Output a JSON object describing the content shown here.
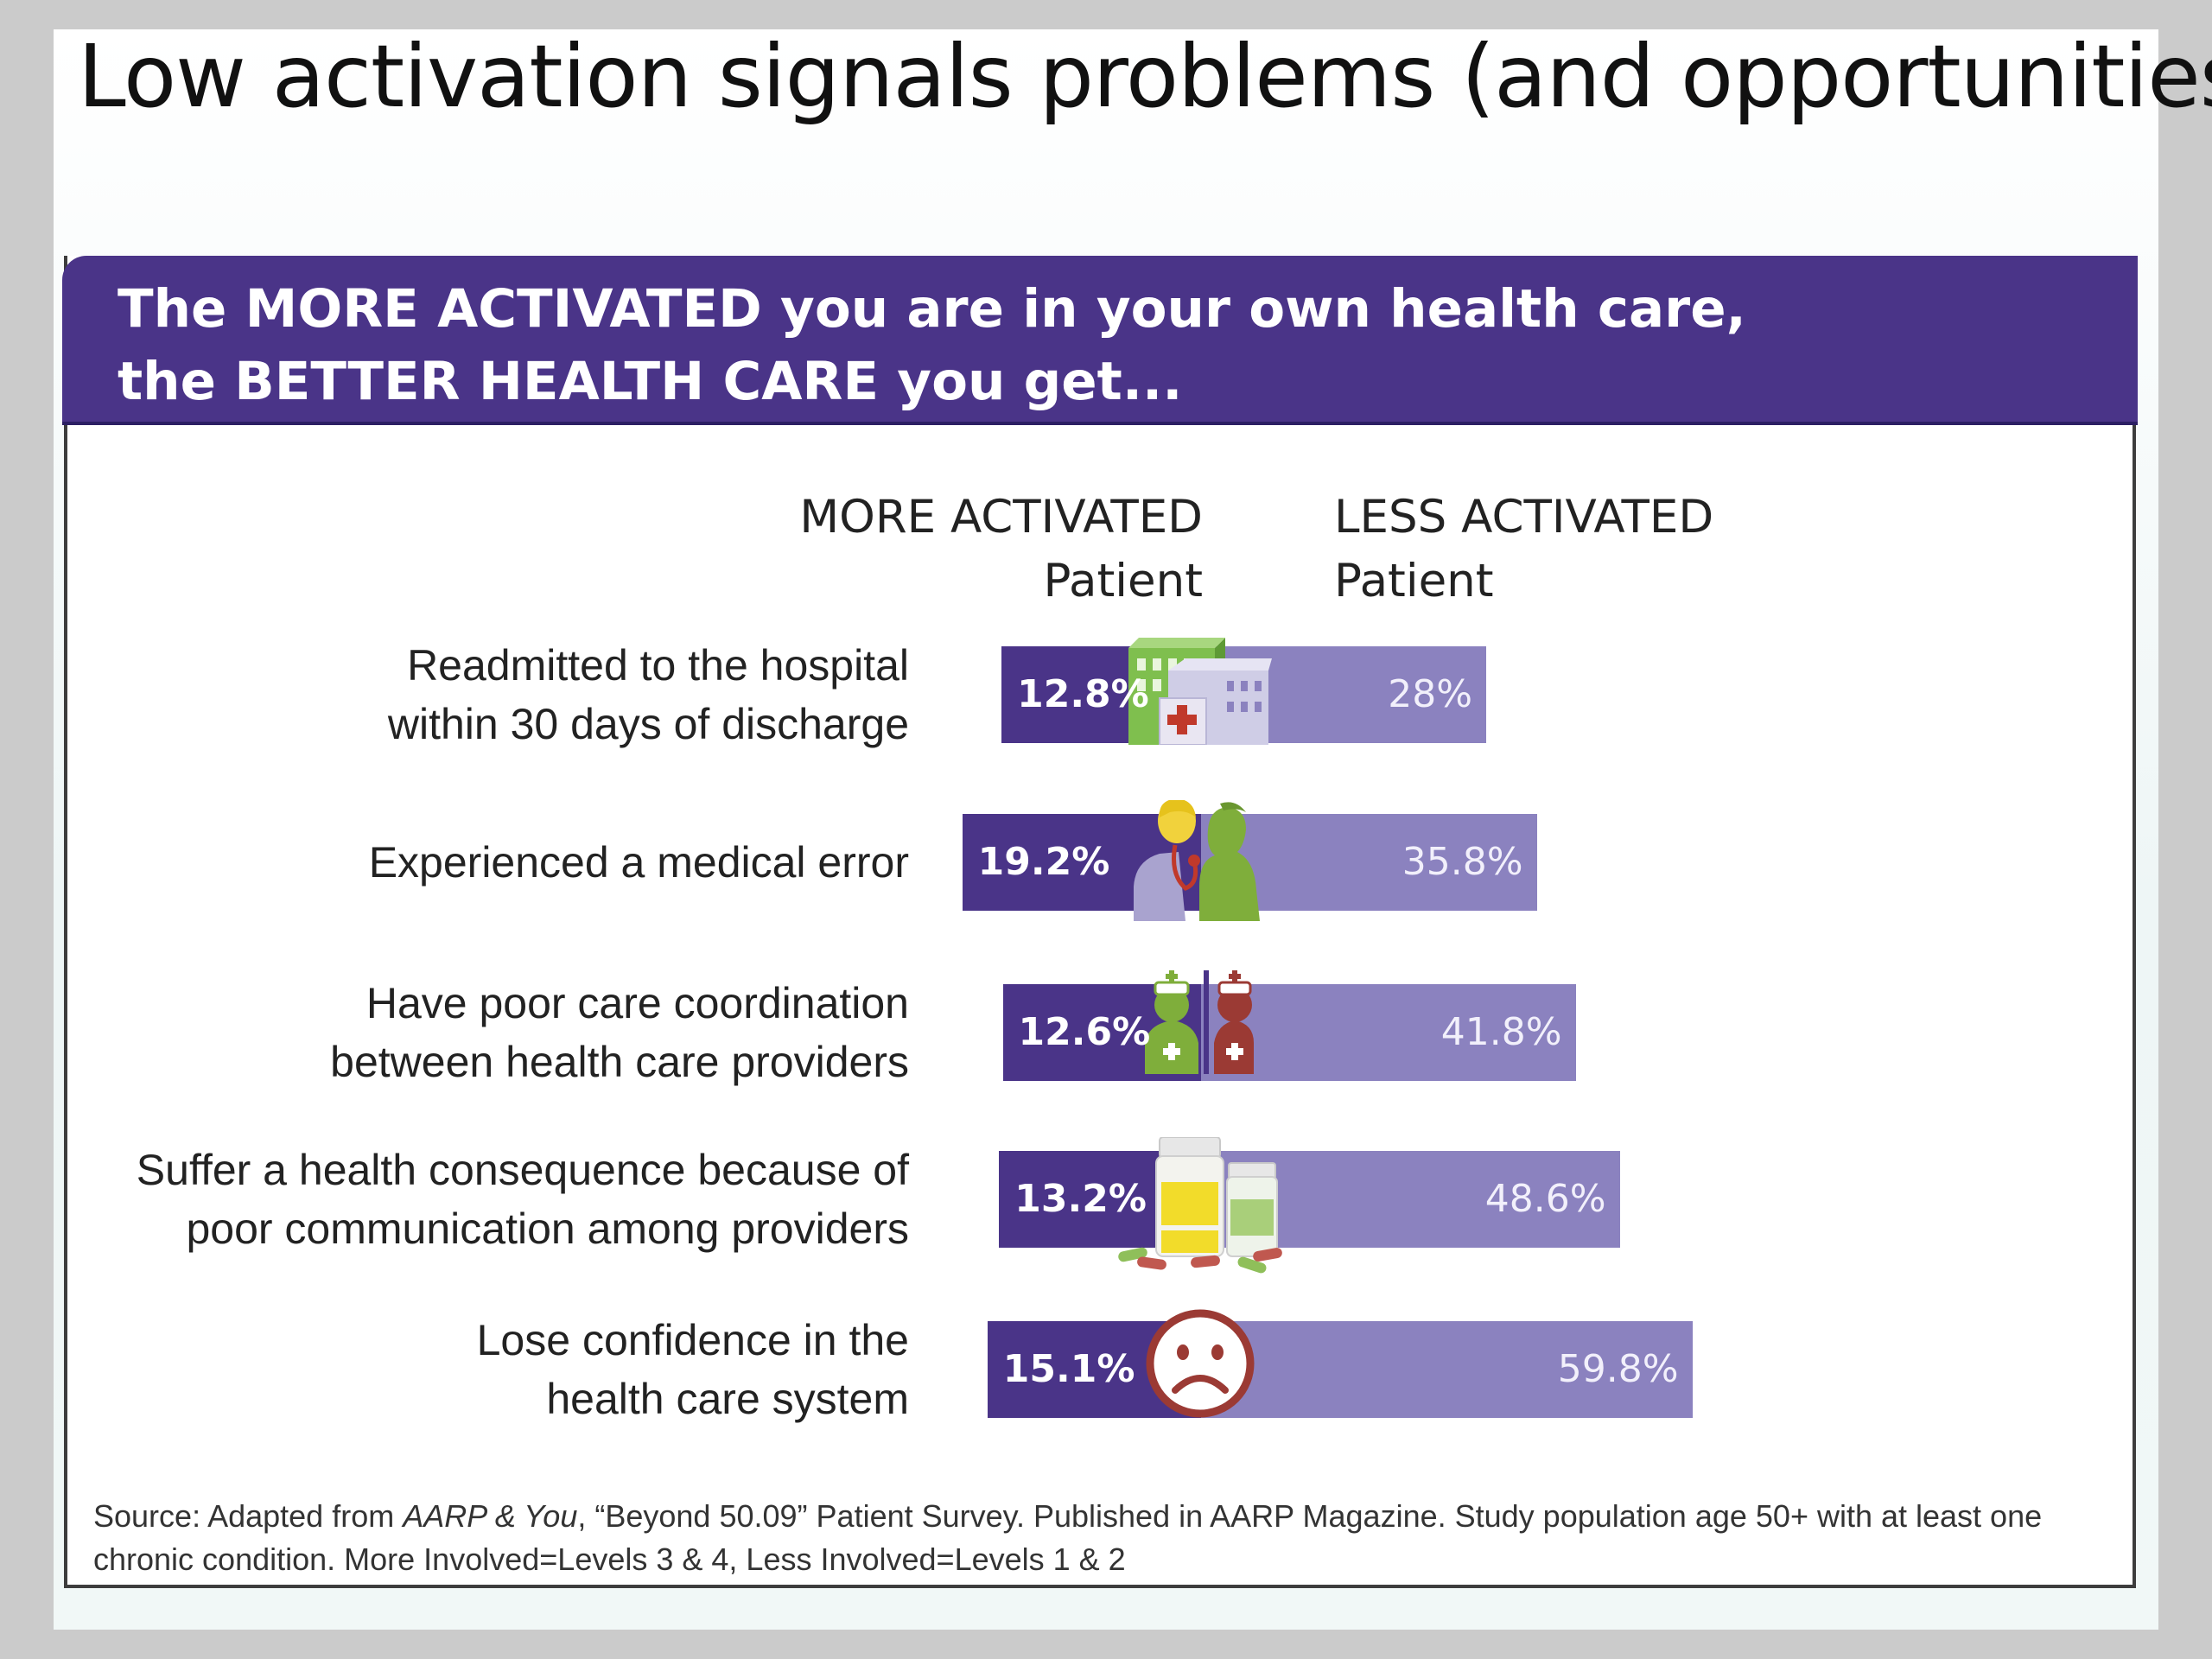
{
  "title": "Low activation signals problems (and opportunities)",
  "banner": {
    "line1": "The MORE ACTIVATED you are in your own health care,",
    "line2": "the BETTER HEALTH CARE you get..."
  },
  "chart_data": {
    "type": "bar",
    "orientation": "horizontal",
    "categories": [
      "Readmitted to the hospital within 30 days of discharge",
      "Experienced a medical error",
      "Have poor care coordination between health care providers",
      "Suffer a health consequence because of poor communication among providers",
      "Lose confidence in the health care system"
    ],
    "category_lines": [
      [
        "Readmitted to the hospital",
        "within 30 days of discharge"
      ],
      [
        "Experienced a medical error"
      ],
      [
        "Have poor care coordination",
        "between health care providers"
      ],
      [
        "Suffer a health consequence because of",
        "poor communication among providers"
      ],
      [
        "Lose confidence in the",
        "health care system"
      ]
    ],
    "series": [
      {
        "name": "MORE ACTIVATED Patient",
        "name_lines": [
          "MORE ACTIVATED",
          "Patient"
        ],
        "values": [
          12.8,
          19.2,
          12.6,
          13.2,
          15.1
        ],
        "labels": [
          "12.8%",
          "19.2%",
          "12.6%",
          "13.2%",
          "15.1%"
        ],
        "color": "#4a3488"
      },
      {
        "name": "LESS ACTIVATED Patient",
        "name_lines": [
          "LESS ACTIVATED",
          "Patient"
        ],
        "values": [
          28,
          35.8,
          41.8,
          48.6,
          59.8
        ],
        "labels": [
          "28%",
          "35.8%",
          "41.8%",
          "48.6%",
          "59.8%"
        ],
        "color": "#8b82bf"
      }
    ],
    "icons": [
      "hospital-icon",
      "doctor-patient-icon",
      "nurses-icon",
      "pill-bottles-icon",
      "sad-face-icon"
    ],
    "grid": false
  },
  "source": {
    "prefix": "Source: Adapted from ",
    "italic": "AARP & You",
    "rest": ", “Beyond 50.09” Patient Survey. Published in AARP Magazine. Study population age 50+ with at least one",
    "line2": "chronic condition.  More Involved=Levels 3 & 4, Less Involved=Levels 1 & 2"
  }
}
